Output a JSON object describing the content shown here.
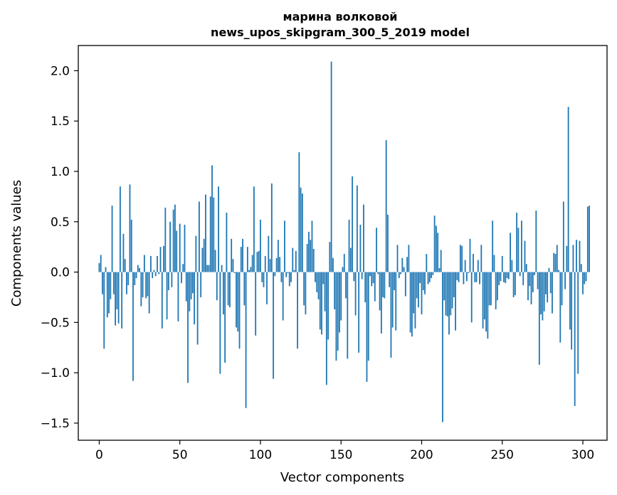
{
  "chart_data": {
    "type": "bar",
    "title": [
      "марина волковой",
      "news_upos_skipgram_300_5_2019 model"
    ],
    "xlabel": "Vector components",
    "ylabel": "Components values",
    "xlim": [
      -13,
      315
    ],
    "ylim": [
      -1.67,
      2.25
    ],
    "xticks": [
      0,
      50,
      100,
      150,
      200,
      250,
      300
    ],
    "xtick_labels": [
      "0",
      "50",
      "100",
      "150",
      "200",
      "250",
      "300"
    ],
    "yticks": [
      -1.5,
      -1.0,
      -0.5,
      0.0,
      0.5,
      1.0,
      1.5,
      2.0
    ],
    "ytick_labels": [
      "−1.5",
      "−1.0",
      "−0.5",
      "0.0",
      "0.5",
      "1.0",
      "1.5",
      "2.0"
    ],
    "bar_color": "#1f77b4",
    "grid": false,
    "values": [
      0.09,
      0.17,
      -0.22,
      -0.76,
      0.05,
      -0.45,
      -0.41,
      -0.27,
      0.66,
      -0.22,
      -0.53,
      -0.37,
      -0.51,
      0.85,
      -0.56,
      0.38,
      0.13,
      -0.22,
      -0.13,
      0.87,
      0.52,
      -1.08,
      -0.13,
      -0.06,
      0.07,
      0.04,
      -0.34,
      -0.25,
      0.17,
      -0.26,
      -0.24,
      -0.41,
      0.16,
      -0.06,
      0.02,
      -0.04,
      0.16,
      -0.02,
      0.25,
      -0.56,
      0.26,
      0.64,
      -0.47,
      -0.18,
      0.5,
      -0.15,
      0.62,
      0.67,
      0.41,
      -0.49,
      0.48,
      -0.11,
      0.08,
      0.47,
      -0.29,
      -1.1,
      -0.39,
      -0.27,
      -0.21,
      -0.52,
      0.36,
      -0.72,
      0.7,
      -0.25,
      0.24,
      0.33,
      0.77,
      0.07,
      0.07,
      0.75,
      1.06,
      0.74,
      0.22,
      -0.28,
      0.85,
      -1.01,
      0.07,
      -0.42,
      -0.9,
      0.59,
      -0.33,
      -0.35,
      0.33,
      0.13,
      -0.01,
      -0.55,
      -0.59,
      -0.76,
      0.25,
      0.33,
      -0.33,
      -1.35,
      0.25,
      0.02,
      0.05,
      0.17,
      0.85,
      -0.63,
      0.2,
      0.21,
      0.52,
      -0.1,
      -0.15,
      0.16,
      -0.32,
      0.36,
      0.13,
      0.88,
      -1.06,
      -0.04,
      0.14,
      0.32,
      0.15,
      -0.1,
      -0.48,
      0.51,
      -0.05,
      -0.01,
      -0.14,
      -0.1,
      0.24,
      0.02,
      0.21,
      -0.76,
      1.19,
      0.84,
      0.78,
      -0.33,
      -0.42,
      0.28,
      0.4,
      0.32,
      0.51,
      0.23,
      -0.1,
      -0.2,
      -0.27,
      -0.57,
      -0.62,
      -0.12,
      -0.39,
      -1.12,
      -0.67,
      0.3,
      2.09,
      0.14,
      -0.37,
      -0.88,
      -0.78,
      -0.6,
      -0.48,
      0.05,
      0.18,
      -0.26,
      -0.86,
      0.52,
      0.24,
      0.95,
      -0.09,
      -0.43,
      0.86,
      -0.8,
      0.47,
      -0.07,
      0.67,
      -0.3,
      -1.09,
      -0.88,
      -0.04,
      -0.14,
      -0.11,
      -0.29,
      0.44,
      -0.02,
      -0.38,
      -0.61,
      -0.25,
      -0.26,
      1.31,
      0.57,
      -0.15,
      -0.85,
      -0.55,
      -0.18,
      -0.58,
      0.27,
      -0.06,
      -0.02,
      0.14,
      0.05,
      -0.24,
      0.15,
      0.27,
      -0.6,
      -0.64,
      -0.41,
      -0.56,
      -0.26,
      -0.35,
      -0.11,
      -0.42,
      -0.18,
      -0.22,
      0.18,
      -0.12,
      -0.1,
      -0.06,
      -0.03,
      0.56,
      0.46,
      0.39,
      0.04,
      0.22,
      -1.49,
      -0.28,
      -0.43,
      -0.44,
      -0.62,
      -0.43,
      -0.36,
      -0.25,
      -0.58,
      -0.08,
      -0.1,
      0.27,
      0.26,
      -0.12,
      0.12,
      -0.09,
      -0.01,
      0.33,
      -0.5,
      0.18,
      -0.1,
      -0.1,
      0.12,
      -0.12,
      0.27,
      -0.56,
      -0.47,
      -0.59,
      -0.66,
      -0.33,
      -0.33,
      0.51,
      0.17,
      -0.37,
      -0.28,
      -0.13,
      -0.09,
      0.16,
      -0.1,
      -0.11,
      -0.06,
      -0.07,
      0.39,
      0.12,
      -0.25,
      -0.23,
      0.59,
      0.44,
      -0.04,
      0.51,
      -0.13,
      0.31,
      0.08,
      -0.28,
      -0.14,
      -0.32,
      -0.2,
      -0.03,
      0.61,
      -0.17,
      -0.92,
      -0.42,
      -0.48,
      -0.39,
      -0.22,
      -0.3,
      0.04,
      -0.21,
      -0.41,
      0.19,
      0.18,
      0.27,
      0.02,
      -0.7,
      -0.33,
      0.7,
      -0.17,
      0.26,
      1.64,
      -0.57,
      -0.77,
      0.27,
      -1.33,
      0.32,
      -1.01,
      0.31,
      0.08,
      -0.22,
      -0.12,
      -0.09,
      0.65,
      0.66
    ]
  }
}
